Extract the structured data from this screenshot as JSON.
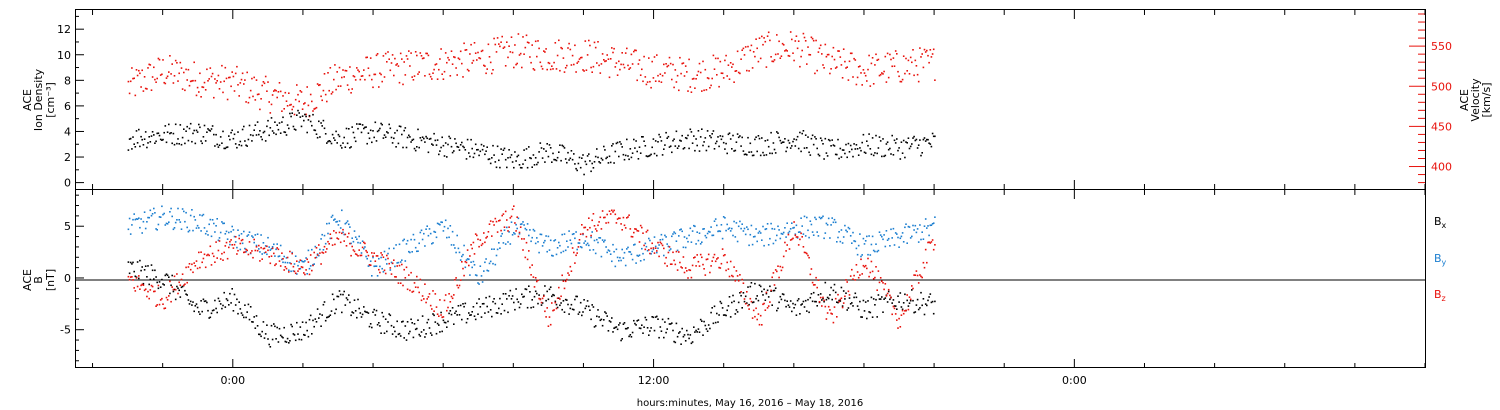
{
  "colors": {
    "black": "#000000",
    "red": "#e8120c",
    "blue": "#1d7fd0"
  },
  "chart_data": [
    {
      "type": "scatter",
      "panel": "top",
      "ylabel_left": [
        "ACE",
        "Ion Density",
        "[cm⁻³]"
      ],
      "ylabel_right": [
        "ACE",
        "Velocity",
        "[km/s]"
      ],
      "ylim_left": [
        -0.5,
        13.5
      ],
      "ylim_right": [
        372,
        595
      ],
      "yticks_left": [
        "0",
        "2",
        "4",
        "6",
        "8",
        "10",
        "12"
      ],
      "yticks_right": [
        "400",
        "450",
        "500",
        "550"
      ],
      "series": [
        {
          "axis": "left",
          "color": "#000000",
          "x": [
            -3.0,
            -2.0,
            -1.0,
            0.0,
            1.0,
            2.0,
            3.0,
            4.0,
            5.0,
            6.0,
            7.0,
            8.0,
            9.0,
            10.0,
            11.0,
            12.0,
            13.0,
            14.0,
            15.0,
            16.0,
            17.0,
            18.0,
            19.0,
            20.0
          ],
          "values": [
            3.5,
            3.8,
            4.0,
            3.5,
            4.2,
            5.0,
            3.5,
            4.0,
            3.5,
            3.0,
            2.5,
            1.8,
            2.5,
            1.5,
            2.5,
            3.0,
            3.5,
            3.2,
            3.0,
            3.5,
            2.5,
            3.0,
            2.8,
            3.2
          ]
        },
        {
          "axis": "right",
          "color": "#e8120c",
          "x": [
            -3.0,
            -2.0,
            -1.0,
            0.0,
            1.0,
            2.0,
            3.0,
            4.0,
            5.0,
            6.0,
            7.0,
            8.0,
            9.0,
            10.0,
            11.0,
            12.0,
            13.0,
            14.0,
            15.0,
            16.0,
            17.0,
            18.0,
            19.0,
            20.0
          ],
          "values": [
            500,
            520,
            510,
            505,
            490,
            480,
            510,
            520,
            525,
            530,
            535,
            545,
            540,
            540,
            530,
            520,
            515,
            520,
            545,
            550,
            530,
            520,
            525,
            530
          ]
        }
      ]
    },
    {
      "type": "scatter",
      "panel": "bottom",
      "ylabel_left": [
        "ACE",
        "B",
        "[nT]"
      ],
      "ylim": [
        -8.7,
        8.5
      ],
      "yticks": [
        "-5",
        "0",
        "5"
      ],
      "legend": [
        "Bx",
        "By",
        "Bz"
      ],
      "series": [
        {
          "name": "Bx",
          "color": "#000000",
          "x": [
            -3.0,
            -2.0,
            -1.0,
            0.0,
            1.0,
            2.0,
            3.0,
            4.0,
            5.0,
            6.0,
            7.0,
            8.0,
            9.0,
            10.0,
            11.0,
            12.0,
            13.0,
            14.0,
            15.0,
            16.0,
            17.0,
            18.0,
            19.0,
            20.0
          ],
          "values": [
            1.0,
            0.0,
            -3.0,
            -2.0,
            -5.5,
            -5.0,
            -2.0,
            -4.0,
            -5.0,
            -4.0,
            -3.0,
            -2.0,
            -1.5,
            -3.0,
            -5.0,
            -4.5,
            -5.5,
            -3.0,
            -1.0,
            -3.0,
            -1.0,
            -3.0,
            -2.0,
            -2.5
          ]
        },
        {
          "name": "By",
          "color": "#1d7fd0",
          "x": [
            -3.0,
            -2.0,
            -1.0,
            0.0,
            1.0,
            2.0,
            3.0,
            4.0,
            5.0,
            6.0,
            7.0,
            8.0,
            9.0,
            10.0,
            11.0,
            12.0,
            13.0,
            14.0,
            15.0,
            16.0,
            17.0,
            18.0,
            19.0,
            20.0
          ],
          "values": [
            5.0,
            6.0,
            5.5,
            4.0,
            3.0,
            1.0,
            6.0,
            1.0,
            3.0,
            5.0,
            0.0,
            5.0,
            3.0,
            4.0,
            2.0,
            3.0,
            4.0,
            5.0,
            4.0,
            5.0,
            5.0,
            3.0,
            4.0,
            5.0
          ]
        },
        {
          "name": "Bz",
          "color": "#e8120c",
          "x": [
            -3.0,
            -2.0,
            -1.0,
            0.0,
            1.0,
            2.0,
            3.0,
            4.0,
            5.0,
            6.0,
            7.0,
            8.0,
            9.0,
            10.0,
            11.0,
            12.0,
            13.0,
            14.0,
            15.0,
            16.0,
            17.0,
            18.0,
            19.0,
            20.0
          ],
          "values": [
            0.0,
            -2.0,
            2.0,
            3.0,
            2.5,
            1.0,
            4.0,
            2.0,
            0.0,
            -3.0,
            4.0,
            6.0,
            -4.0,
            5.0,
            6.0,
            3.0,
            1.0,
            2.0,
            -4.0,
            5.0,
            -4.0,
            2.0,
            -4.0,
            4.0
          ]
        }
      ]
    }
  ],
  "x_axis": {
    "title": "hours:minutes, May 16, 2016 – May 18, 2016",
    "range_hours": [
      -4.5,
      34
    ],
    "major_ticks": [
      {
        "x": 0,
        "label": "0:00"
      },
      {
        "x": 12,
        "label": "12:00"
      },
      {
        "x": 24,
        "label": "0:00"
      }
    ]
  }
}
